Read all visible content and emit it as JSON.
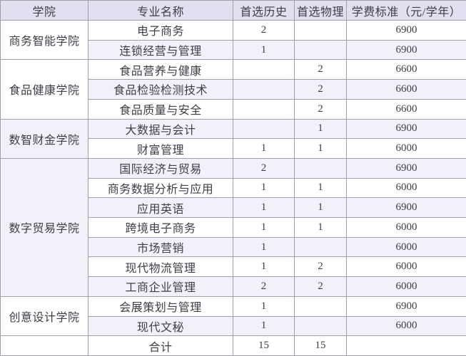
{
  "table": {
    "headers": [
      "学院",
      "专业名称",
      "首选历史",
      "首选物理",
      "学费标准（元/学年）"
    ],
    "groups": [
      {
        "college": "商务智能学院",
        "majors": [
          {
            "name": "电子商务",
            "history": "2",
            "physics": "",
            "fee": "6900"
          },
          {
            "name": "连锁经营与管理",
            "history": "1",
            "physics": "",
            "fee": "6900"
          }
        ]
      },
      {
        "college": "食品健康学院",
        "majors": [
          {
            "name": "食品营养与健康",
            "history": "",
            "physics": "2",
            "fee": "6600"
          },
          {
            "name": "食品检验检测技术",
            "history": "",
            "physics": "2",
            "fee": "6600"
          },
          {
            "name": "食品质量与安全",
            "history": "",
            "physics": "2",
            "fee": "6600"
          }
        ]
      },
      {
        "college": "数智财金学院",
        "majors": [
          {
            "name": "大数据与会计",
            "history": "",
            "physics": "1",
            "fee": "6900"
          },
          {
            "name": "财富管理",
            "history": "1",
            "physics": "1",
            "fee": "6000"
          }
        ]
      },
      {
        "college": "数字贸易学院",
        "majors": [
          {
            "name": "国际经济与贸易",
            "history": "2",
            "physics": "",
            "fee": "6900"
          },
          {
            "name": "商务数据分析与应用",
            "history": "1",
            "physics": "1",
            "fee": "6000"
          },
          {
            "name": "应用英语",
            "history": "1",
            "physics": "1",
            "fee": "6900"
          },
          {
            "name": "跨境电子商务",
            "history": "1",
            "physics": "1",
            "fee": "6000"
          },
          {
            "name": "市场营销",
            "history": "1",
            "physics": "",
            "fee": "6000"
          },
          {
            "name": "现代物流管理",
            "history": "1",
            "physics": "2",
            "fee": "6000"
          },
          {
            "name": "工商企业管理",
            "history": "2",
            "physics": "2",
            "fee": "6000"
          }
        ]
      },
      {
        "college": "创意设计学院",
        "majors": [
          {
            "name": "会展策划与管理",
            "history": "1",
            "physics": "",
            "fee": "6900"
          },
          {
            "name": "现代文秘",
            "history": "1",
            "physics": "",
            "fee": "6000"
          }
        ]
      }
    ],
    "total_row": {
      "college": "",
      "label": "合计",
      "history": "15",
      "physics": "15",
      "fee": ""
    }
  },
  "colors": {
    "header_bg": "#e1e0f1",
    "stripe_bg": "#f1f1f9",
    "border": "#9fa0ab",
    "text": "#3e3e46"
  }
}
